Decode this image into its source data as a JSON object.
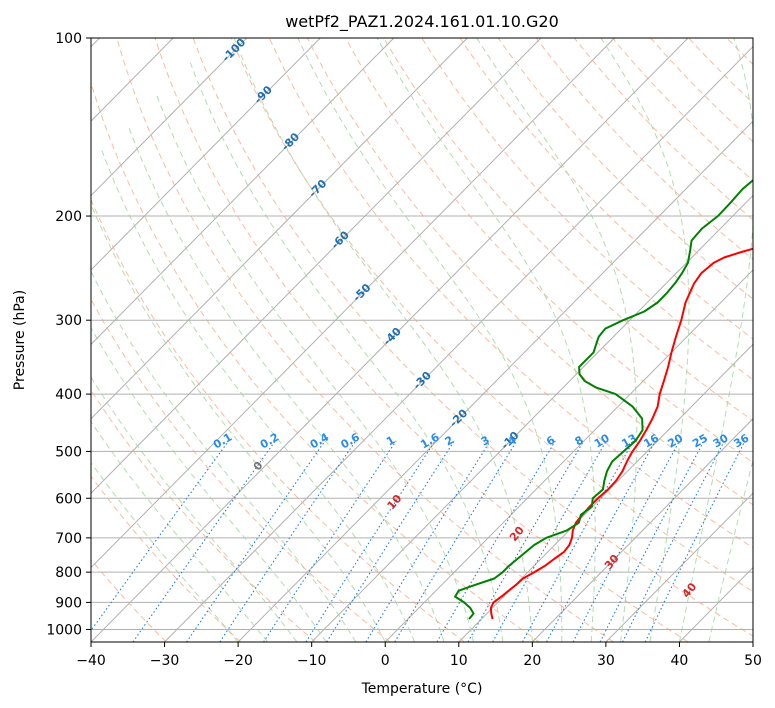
{
  "chart_data": {
    "type": "line",
    "chart_subtype": "skew-T log-P diagram",
    "title": "wetPf2_PAZ1.2024.161.01.10.G20",
    "xlabel": "Temperature (°C)",
    "ylabel": "Pressure (hPa)",
    "xlim": [
      -40,
      50
    ],
    "ylim": [
      1050,
      100
    ],
    "y_scale": "log",
    "x_ticks": [
      -40,
      -30,
      -20,
      -10,
      0,
      10,
      20,
      30,
      40,
      50
    ],
    "y_ticks": [
      100,
      200,
      300,
      400,
      500,
      600,
      700,
      800,
      900,
      1000
    ],
    "grid": true,
    "series": [
      {
        "role": "temperature",
        "color": "#ff0000",
        "pressure": [
          960,
          940,
          920,
          900,
          880,
          860,
          840,
          820,
          800,
          780,
          760,
          740,
          720,
          700,
          680,
          660,
          640,
          620,
          600,
          580,
          560,
          540,
          520,
          500,
          480,
          460,
          440,
          420,
          400,
          380,
          360,
          340,
          320,
          300,
          280,
          260,
          250,
          240,
          235,
          230,
          225,
          220,
          210,
          200,
          190,
          180,
          170,
          160,
          150,
          145,
          140,
          135,
          130,
          125,
          120,
          115,
          110,
          105,
          100
        ],
        "temperature": [
          11.5,
          10.6,
          9.8,
          9.4,
          9.7,
          9.9,
          10.1,
          10.2,
          10.9,
          11.5,
          11.8,
          12.2,
          12.0,
          11.4,
          10.5,
          9.9,
          9.7,
          9.6,
          9.6,
          9.8,
          9.7,
          9.3,
          8.6,
          8.0,
          7.6,
          7.0,
          6.3,
          5.4,
          4.0,
          2.8,
          1.5,
          0.0,
          -1.5,
          -3.0,
          -4.8,
          -6.2,
          -6.6,
          -6.3,
          -5.6,
          -4.0,
          -2.0,
          0.0,
          2.8,
          5.5,
          8.2,
          10.8,
          12.9,
          14.5,
          15.6,
          16.0,
          16.5,
          17.3,
          18.8,
          20.8,
          22.6,
          23.7,
          24.8,
          25.8,
          26.8
        ]
      },
      {
        "role": "dewpoint",
        "color": "#008000",
        "pressure": [
          960,
          940,
          920,
          900,
          880,
          860,
          840,
          820,
          800,
          780,
          760,
          740,
          720,
          700,
          680,
          660,
          640,
          620,
          600,
          580,
          560,
          540,
          520,
          500,
          480,
          460,
          440,
          420,
          400,
          390,
          380,
          370,
          360,
          350,
          340,
          330,
          320,
          310,
          300,
          290,
          280,
          270,
          260,
          250,
          240,
          230,
          220,
          210,
          200,
          190,
          180,
          175,
          170,
          165,
          160,
          155,
          150,
          145,
          140,
          135,
          130,
          125,
          120,
          115,
          110,
          105,
          100
        ],
        "dewpoint": [
          8.3,
          8.2,
          7.0,
          5.4,
          3.4,
          3.1,
          4.6,
          6.3,
          6.6,
          6.6,
          6.8,
          7.0,
          7.2,
          7.9,
          9.7,
          10.3,
          9.5,
          9.9,
          8.9,
          9.1,
          8.1,
          7.2,
          6.6,
          6.8,
          7.0,
          6.5,
          4.9,
          2.0,
          -2.0,
          -5.5,
          -8.0,
          -9.6,
          -10.6,
          -10.6,
          -10.6,
          -11.3,
          -12.0,
          -12.2,
          -10.9,
          -9.2,
          -8.6,
          -8.6,
          -8.8,
          -9.2,
          -9.8,
          -11.0,
          -12.3,
          -12.5,
          -12.0,
          -12.1,
          -12.3,
          -12.1,
          -11.7,
          -12.0,
          -13.0,
          -14.0,
          -13.5,
          -9.5,
          -5.5,
          -2.5,
          -0.5,
          0.5,
          1.8,
          2.6,
          3.5,
          5.5,
          6.8
        ]
      }
    ],
    "dry_adiabat_labels": [
      "-100",
      "-90",
      "-80",
      "-70",
      "-60",
      "-50",
      "-40",
      "-30",
      "-20",
      "-10"
    ],
    "mixing_ratio_labels": [
      "0.1",
      "0.2",
      "0.4",
      "0.6",
      "1",
      "1.6",
      "2",
      "3",
      "4",
      "6",
      "8",
      "10",
      "13",
      "16",
      "20",
      "25",
      "30",
      "36"
    ],
    "moist_adiabat_labels": [
      "0",
      "10",
      "20",
      "30",
      "40"
    ],
    "colors": {
      "temperature": "#ff0000",
      "dewpoint": "#008000",
      "isotherm": "#b0b0b0",
      "dry_adiabat": "#f4a582",
      "moist_adiabat": "#9fd39f",
      "mixing_ratio": "#1f7fe0",
      "dry_label": "#1f6fb0",
      "moist_label": "#d62728",
      "mixing_label": "#2a8ce8"
    }
  }
}
